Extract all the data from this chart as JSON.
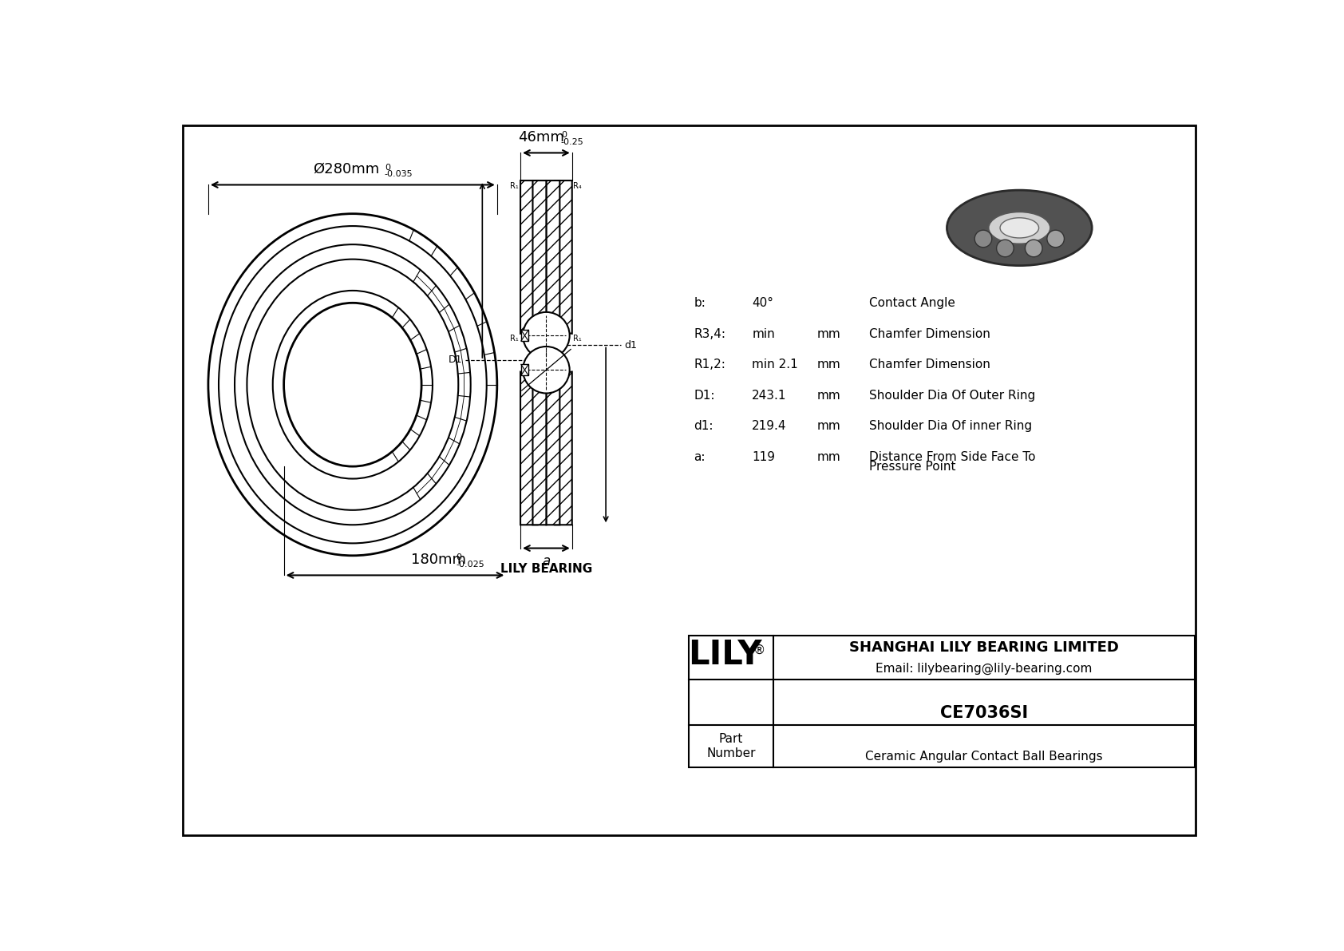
{
  "bg_color": "#ffffff",
  "line_color": "#000000",
  "outer_dia_label": "Ø280mm",
  "outer_tol_upper": "0",
  "outer_tol_lower": "-0.035",
  "inner_dia_label": "180mm",
  "inner_tol_upper": "0",
  "inner_tol_lower": "-0.025",
  "width_label": "46mm",
  "width_tol_upper": "0",
  "width_tol_lower": "-0.25",
  "specs": [
    {
      "param": "b:",
      "value": "40°",
      "unit": "",
      "desc": "Contact Angle"
    },
    {
      "param": "R3,4:",
      "value": "min",
      "unit": "mm",
      "desc": "Chamfer Dimension"
    },
    {
      "param": "R1,2:",
      "value": "min 2.1",
      "unit": "mm",
      "desc": "Chamfer Dimension"
    },
    {
      "param": "D1:",
      "value": "243.1",
      "unit": "mm",
      "desc": "Shoulder Dia Of Outer Ring"
    },
    {
      "param": "d1:",
      "value": "219.4",
      "unit": "mm",
      "desc": "Shoulder Dia Of inner Ring"
    },
    {
      "param": "a:",
      "value": "119",
      "unit": "mm",
      "desc": "Distance From Side Face To\nPressure Point"
    }
  ],
  "logo_text": "LILY",
  "company": "SHANGHAI LILY BEARING LIMITED",
  "email": "Email: lilybearing@lily-bearing.com",
  "part_label": "Part\nNumber",
  "part_number": "CE7036SI",
  "part_desc": "Ceramic Angular Contact Ball Bearings",
  "lily_bearing_label": "LILY BEARING"
}
